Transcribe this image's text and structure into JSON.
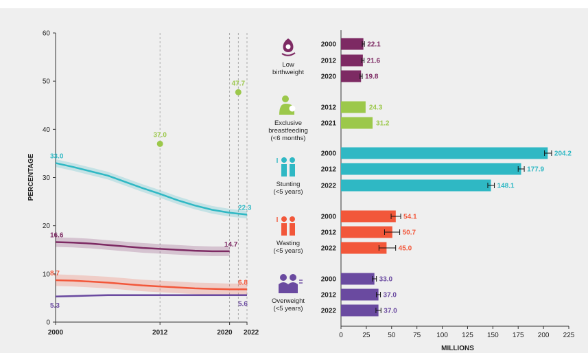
{
  "colors": {
    "low_birthweight": "#7d2a63",
    "breastfeeding": "#9cc84b",
    "stunting": "#2fb8c4",
    "wasting": "#f2573a",
    "overweight": "#6a4aa0"
  },
  "chart_data": [
    {
      "type": "line",
      "ylabel": "PERCENTAGE",
      "ylim": [
        0,
        60
      ],
      "y_ticks": [
        "0",
        "10",
        "20",
        "30",
        "40",
        "50",
        "60"
      ],
      "x_ticks": [
        "2000",
        "2012",
        "2020",
        "2022"
      ],
      "xlim": [
        2000,
        2022
      ],
      "reference_years": [
        2012,
        2020,
        2021,
        2022
      ],
      "grid": false,
      "series": [
        {
          "key": "stunting",
          "x": [
            2000,
            2002,
            2004,
            2006,
            2008,
            2010,
            2012,
            2014,
            2016,
            2018,
            2020,
            2022
          ],
          "y": [
            33.0,
            32.2,
            31.3,
            30.4,
            29.1,
            27.8,
            26.6,
            25.3,
            24.2,
            23.3,
            22.7,
            22.3
          ],
          "band": 0.8,
          "start_label": "33.0",
          "end_label": "22.3"
        },
        {
          "key": "low_birthweight",
          "x": [
            2000,
            2002,
            2004,
            2006,
            2008,
            2010,
            2012,
            2014,
            2016,
            2018,
            2020
          ],
          "y": [
            16.6,
            16.5,
            16.3,
            16.0,
            15.7,
            15.4,
            15.2,
            15.0,
            14.8,
            14.7,
            14.7
          ],
          "band": 1.0,
          "start_label": "16.6",
          "end_label": "14.7"
        },
        {
          "key": "wasting",
          "x": [
            2000,
            2002,
            2004,
            2006,
            2008,
            2010,
            2012,
            2014,
            2016,
            2018,
            2020,
            2022
          ],
          "y": [
            8.7,
            8.6,
            8.4,
            8.2,
            7.9,
            7.6,
            7.4,
            7.2,
            7.0,
            6.9,
            6.8,
            6.8
          ],
          "band": 1.2,
          "start_label": "8.7",
          "end_label": "6.8"
        },
        {
          "key": "overweight",
          "x": [
            2000,
            2002,
            2004,
            2006,
            2008,
            2010,
            2012,
            2014,
            2016,
            2018,
            2020,
            2022
          ],
          "y": [
            5.3,
            5.4,
            5.5,
            5.6,
            5.6,
            5.6,
            5.6,
            5.6,
            5.6,
            5.6,
            5.6,
            5.6
          ],
          "band": 0.2,
          "start_label": "5.3",
          "end_label": "5.6"
        }
      ],
      "points": [
        {
          "key": "breastfeeding",
          "x": 2012,
          "y": 37.0,
          "label": "37.0"
        },
        {
          "key": "breastfeeding",
          "x": 2021,
          "y": 47.7,
          "label": "47.7"
        }
      ]
    },
    {
      "type": "bar",
      "orientation": "horizontal",
      "xlabel": "MILLIONS",
      "xlim": [
        0,
        225
      ],
      "x_ticks": [
        "0",
        "25",
        "50",
        "75",
        "100",
        "125",
        "150",
        "175",
        "200",
        "225"
      ],
      "groups": [
        {
          "key": "low_birthweight",
          "label": [
            "Low",
            "birthweight"
          ],
          "icon": "low-birthweight-icon",
          "bars": [
            {
              "year": "2000",
              "value": 22.1,
              "label": "22.1",
              "err": [
                21.0,
                23.2
              ]
            },
            {
              "year": "2012",
              "value": 21.6,
              "label": "21.6",
              "err": [
                20.5,
                22.8
              ]
            },
            {
              "year": "2020",
              "value": 19.8,
              "label": "19.8",
              "err": [
                18.8,
                21.0
              ]
            }
          ]
        },
        {
          "key": "breastfeeding",
          "label": [
            "Exclusive",
            "breastfeeding",
            "(<6 months)"
          ],
          "icon": "breastfeeding-icon",
          "bars": [
            {
              "year": "2012",
              "value": 24.3,
              "label": "24.3"
            },
            {
              "year": "2021",
              "value": 31.2,
              "label": "31.2"
            }
          ]
        },
        {
          "key": "stunting",
          "label": [
            "Stunting",
            "(<5 years)"
          ],
          "icon": "stunting-icon",
          "bars": [
            {
              "year": "2000",
              "value": 204.2,
              "label": "204.2",
              "err": [
                201.0,
                208.0
              ]
            },
            {
              "year": "2012",
              "value": 177.9,
              "label": "177.9",
              "err": [
                175.0,
                181.0
              ]
            },
            {
              "year": "2022",
              "value": 148.1,
              "label": "148.1",
              "err": [
                145.0,
                151.5
              ]
            }
          ]
        },
        {
          "key": "wasting",
          "label": [
            "Wasting",
            "(<5 years)"
          ],
          "icon": "wasting-icon",
          "bars": [
            {
              "year": "2000",
              "value": 54.1,
              "label": "54.1",
              "err": [
                49.5,
                59.0
              ]
            },
            {
              "year": "2012",
              "value": 50.7,
              "label": "50.7",
              "err": [
                43.0,
                58.0
              ]
            },
            {
              "year": "2022",
              "value": 45.0,
              "label": "45.0",
              "err": [
                37.5,
                54.0
              ]
            }
          ]
        },
        {
          "key": "overweight",
          "label": [
            "Overweight",
            "(<5 years)"
          ],
          "icon": "overweight-icon",
          "bars": [
            {
              "year": "2000",
              "value": 33.0,
              "label": "33.0",
              "err": [
                31.0,
                35.0
              ]
            },
            {
              "year": "2012",
              "value": 37.0,
              "label": "37.0",
              "err": [
                35.0,
                39.0
              ]
            },
            {
              "year": "2022",
              "value": 37.0,
              "label": "37.0",
              "err": [
                34.5,
                39.5
              ]
            }
          ]
        }
      ]
    }
  ]
}
